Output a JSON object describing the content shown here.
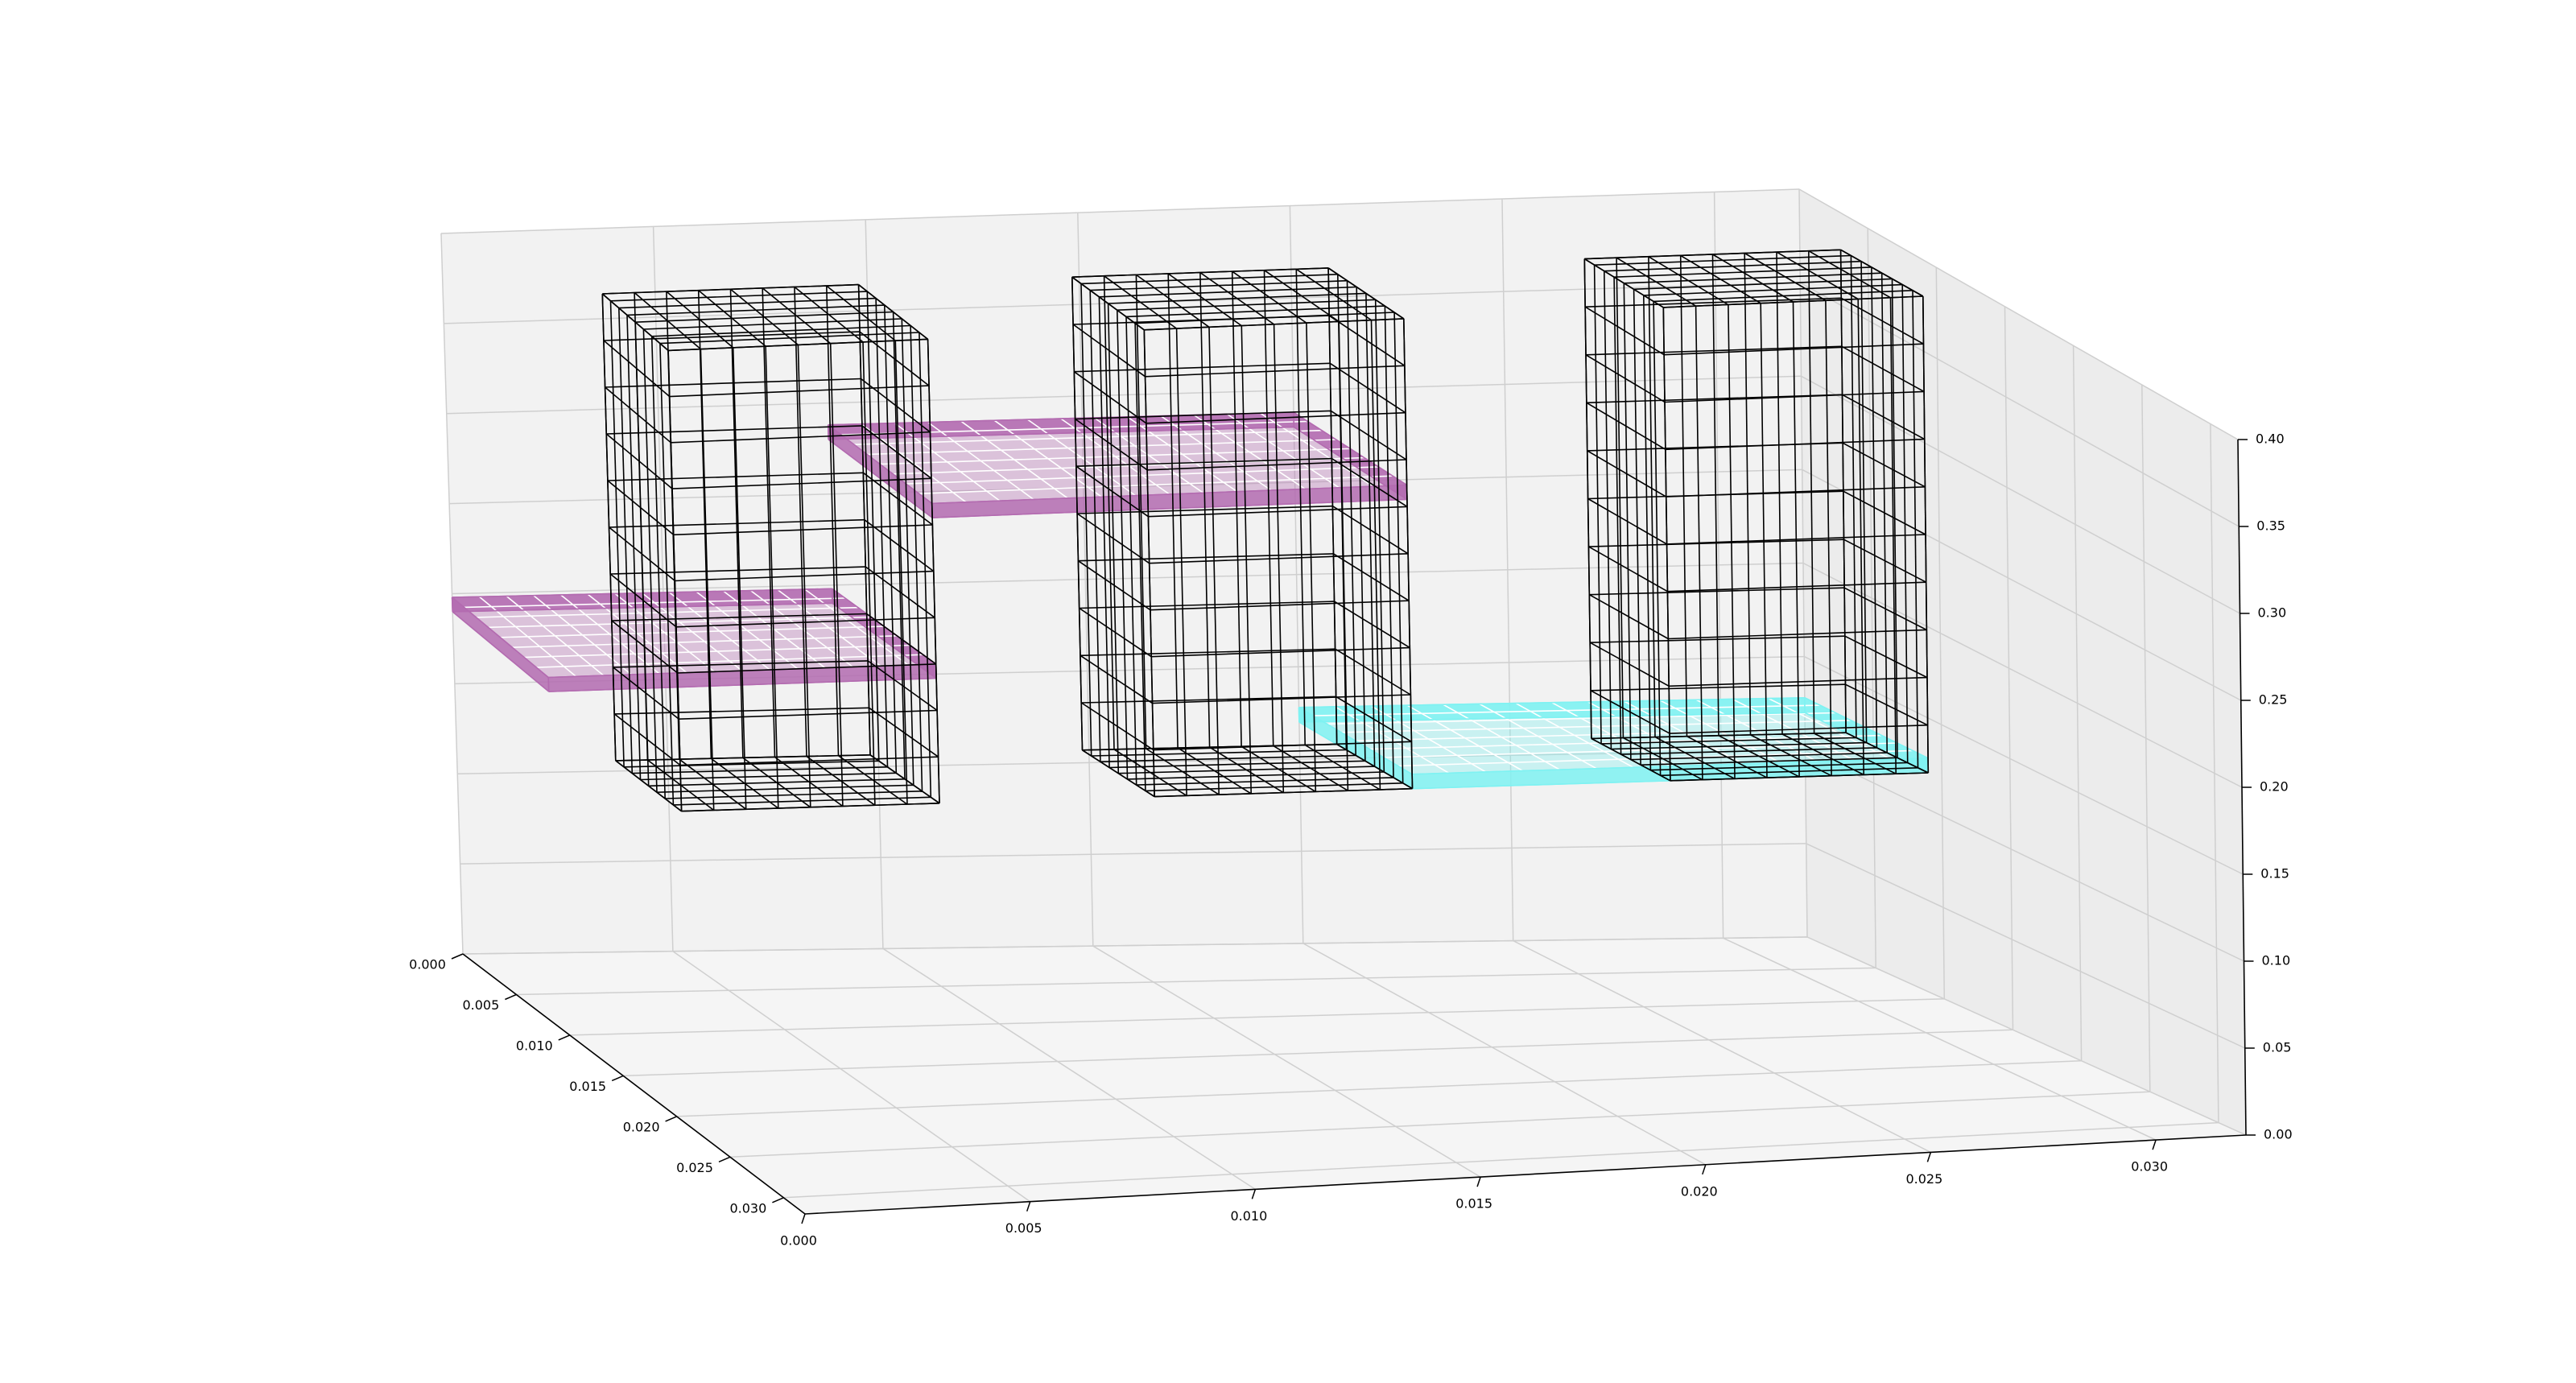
{
  "chart_data": {
    "type": "3d-wireframe",
    "title": "",
    "xlabel": "",
    "ylabel": "",
    "zlabel": "",
    "grid": true,
    "x_ticks": [
      "0.000",
      "0.005",
      "0.010",
      "0.015",
      "0.020",
      "0.025",
      "0.030"
    ],
    "y_ticks": [
      "0.000",
      "0.005",
      "0.010",
      "0.015",
      "0.020",
      "0.025",
      "0.030"
    ],
    "z_ticks": [
      "0.00",
      "0.05",
      "0.10",
      "0.15",
      "0.20",
      "0.25",
      "0.30",
      "0.35",
      "0.40"
    ],
    "xlim": [
      0.0,
      0.032
    ],
    "ylim": [
      0.0,
      0.032
    ],
    "zlim": [
      0.0,
      0.4
    ],
    "colors": {
      "plate_magenta": "#b36bb0",
      "plate_cyan": "#7ff2f2",
      "column_wire": "#000000"
    },
    "columns": [
      {
        "x": [
          0.003,
          0.009
        ],
        "y": [
          0.003,
          0.009
        ],
        "z": [
          0.12,
          0.38
        ]
      },
      {
        "x": [
          0.014,
          0.02
        ],
        "y": [
          0.003,
          0.009
        ],
        "z": [
          0.12,
          0.38
        ]
      },
      {
        "x": [
          0.026,
          0.032
        ],
        "y": [
          0.003,
          0.009
        ],
        "z": [
          0.12,
          0.38
        ]
      }
    ],
    "plates": [
      {
        "color": "plate_magenta",
        "x": [
          0.0,
          0.009
        ],
        "y": [
          0.0,
          0.009
        ],
        "z": [
          0.19,
          0.198
        ]
      },
      {
        "color": "plate_magenta",
        "x": [
          0.009,
          0.02
        ],
        "y": [
          0.0,
          0.009
        ],
        "z": [
          0.28,
          0.288
        ]
      },
      {
        "color": "plate_cyan",
        "x": [
          0.02,
          0.032
        ],
        "y": [
          0.0,
          0.009
        ],
        "z": [
          0.12,
          0.128
        ]
      }
    ]
  }
}
